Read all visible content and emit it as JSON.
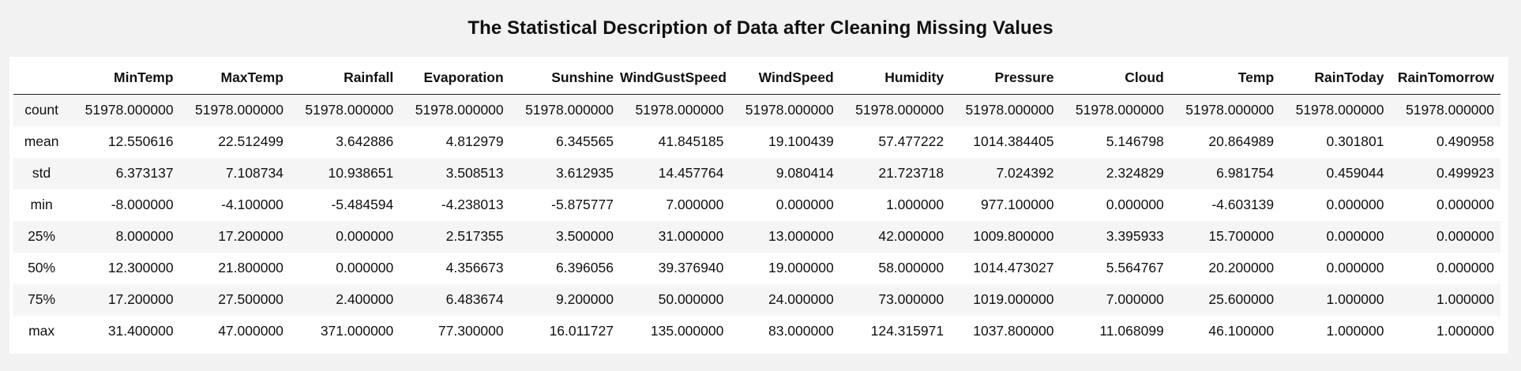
{
  "title": "The Statistical Description of Data after Cleaning Missing Values",
  "table": {
    "columns": [
      "MinTemp",
      "MaxTemp",
      "Rainfall",
      "Evaporation",
      "Sunshine",
      "WindGustSpeed",
      "WindSpeed",
      "Humidity",
      "Pressure",
      "Cloud",
      "Temp",
      "RainToday",
      "RainTomorrow"
    ],
    "rows": [
      {
        "label": "count",
        "cells": [
          "51978.000000",
          "51978.000000",
          "51978.000000",
          "51978.000000",
          "51978.000000",
          "51978.000000",
          "51978.000000",
          "51978.000000",
          "51978.000000",
          "51978.000000",
          "51978.000000",
          "51978.000000",
          "51978.000000"
        ]
      },
      {
        "label": "mean",
        "cells": [
          "12.550616",
          "22.512499",
          "3.642886",
          "4.812979",
          "6.345565",
          "41.845185",
          "19.100439",
          "57.477222",
          "1014.384405",
          "5.146798",
          "20.864989",
          "0.301801",
          "0.490958"
        ]
      },
      {
        "label": "std",
        "cells": [
          "6.373137",
          "7.108734",
          "10.938651",
          "3.508513",
          "3.612935",
          "14.457764",
          "9.080414",
          "21.723718",
          "7.024392",
          "2.324829",
          "6.981754",
          "0.459044",
          "0.499923"
        ]
      },
      {
        "label": "min",
        "cells": [
          "-8.000000",
          "-4.100000",
          "-5.484594",
          "-4.238013",
          "-5.875777",
          "7.000000",
          "0.000000",
          "1.000000",
          "977.100000",
          "0.000000",
          "-4.603139",
          "0.000000",
          "0.000000"
        ]
      },
      {
        "label": "25%",
        "cells": [
          "8.000000",
          "17.200000",
          "0.000000",
          "2.517355",
          "3.500000",
          "31.000000",
          "13.000000",
          "42.000000",
          "1009.800000",
          "3.395933",
          "15.700000",
          "0.000000",
          "0.000000"
        ]
      },
      {
        "label": "50%",
        "cells": [
          "12.300000",
          "21.800000",
          "0.000000",
          "4.356673",
          "6.396056",
          "39.376940",
          "19.000000",
          "58.000000",
          "1014.473027",
          "5.564767",
          "20.200000",
          "0.000000",
          "0.000000"
        ]
      },
      {
        "label": "75%",
        "cells": [
          "17.200000",
          "27.500000",
          "2.400000",
          "6.483674",
          "9.200000",
          "50.000000",
          "24.000000",
          "73.000000",
          "1019.000000",
          "7.000000",
          "25.600000",
          "1.000000",
          "1.000000"
        ]
      },
      {
        "label": "max",
        "cells": [
          "31.400000",
          "47.000000",
          "371.000000",
          "77.300000",
          "16.011727",
          "135.000000",
          "83.000000",
          "124.315971",
          "1037.800000",
          "11.068099",
          "46.100000",
          "1.000000",
          "1.000000"
        ]
      }
    ]
  }
}
